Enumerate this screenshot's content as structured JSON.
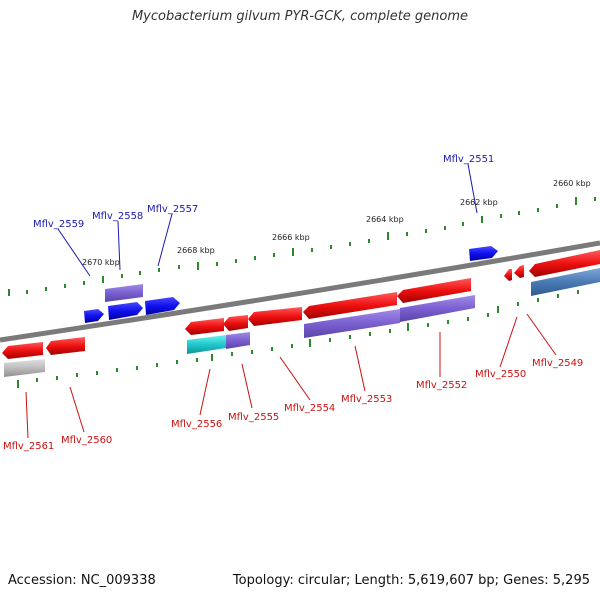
{
  "title": "Mycobacterium gilvum PYR-GCK, complete genome",
  "accession": "Accession: NC_009338",
  "genome_info": "Topology: circular; Length: 5,619,607 bp; Genes: 5,295",
  "ticks": [
    "2670 kbp",
    "2668 kbp",
    "2666 kbp",
    "2664 kbp",
    "2662 kbp",
    "2660 kbp"
  ],
  "genes_top": [
    "Mflv_2559",
    "Mflv_2558",
    "Mflv_2557",
    "Mflv_2551"
  ],
  "genes_bottom": [
    "Mflv_2561",
    "Mflv_2560",
    "Mflv_2556",
    "Mflv_2555",
    "Mflv_2554",
    "Mflv_2553",
    "Mflv_2552",
    "Mflv_2550",
    "Mflv_2549"
  ],
  "colors": {
    "forward_gene": "#1010ee",
    "reverse_gene": "#ee1010",
    "rna_gene": "#7a60d0",
    "backbone": "#808080",
    "tick": "#2a8a2a",
    "top_label": "#1a1ab0",
    "bottom_label": "#cc1111"
  }
}
